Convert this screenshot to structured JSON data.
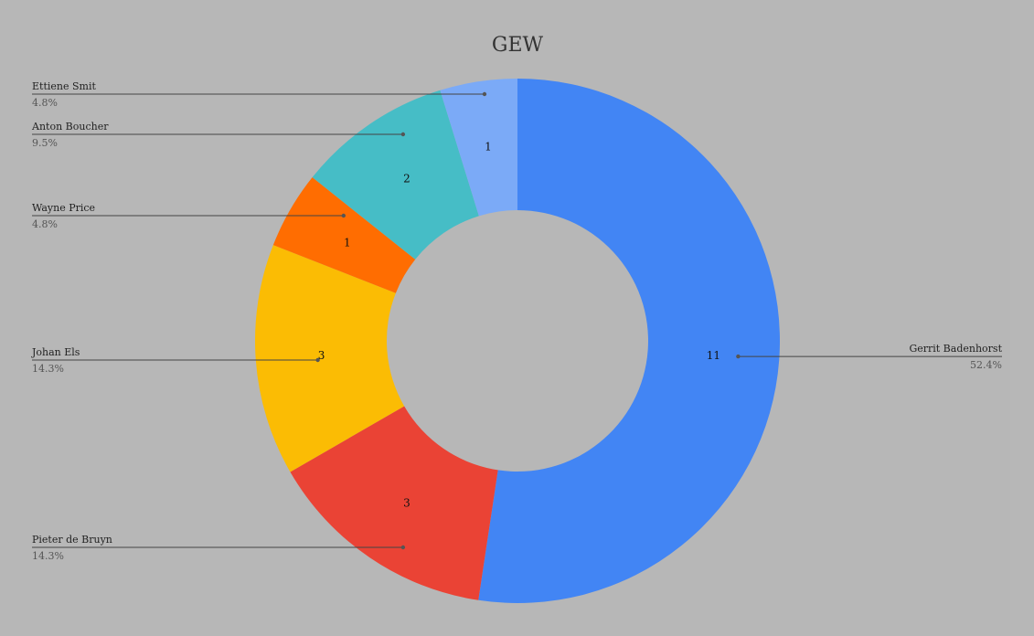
{
  "chart_data": {
    "type": "pie",
    "donut": true,
    "title": "GEW",
    "background": "#b7b7b7",
    "slices": [
      {
        "name": "Gerrit Badenhorst",
        "value": 11,
        "label": "11",
        "percent": "52.4%",
        "color": "#4285f4",
        "legend_side": "right"
      },
      {
        "name": "Pieter de Bruyn",
        "value": 3,
        "label": "3",
        "percent": "14.3%",
        "color": "#ea4335",
        "legend_side": "left"
      },
      {
        "name": "Johan Els",
        "value": 3,
        "label": "3",
        "percent": "14.3%",
        "color": "#fbbc04",
        "legend_side": "left"
      },
      {
        "name": "Wayne Price",
        "value": 1,
        "label": "1",
        "percent": "4.8%",
        "color": "#ff6d01",
        "legend_side": "left"
      },
      {
        "name": "Anton Boucher",
        "value": 2,
        "label": "2",
        "percent": "9.5%",
        "color": "#46bdc6",
        "legend_side": "left"
      },
      {
        "name": "Ettiene Smit",
        "value": 1,
        "label": "1",
        "percent": "4.8%",
        "color": "#7baaf7",
        "legend_side": "left"
      }
    ]
  }
}
